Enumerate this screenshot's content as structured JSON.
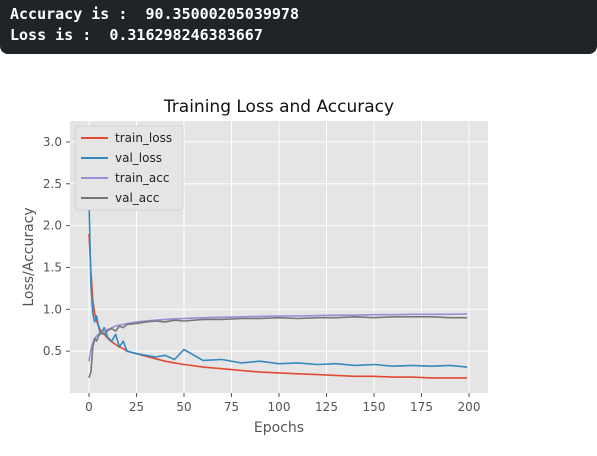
{
  "console": {
    "accuracy_line": "Accuracy is :  90.35000205039978",
    "loss_line": "Loss is :  0.316298246383667"
  },
  "colors": {
    "console_bg": "#1f2428",
    "plot_bg": "#e5e5e5",
    "train_loss": "#e24a33",
    "val_loss": "#348abd",
    "train_acc": "#988ed5",
    "val_acc": "#777777"
  },
  "chart_data": {
    "type": "line",
    "title": "Training Loss and Accuracy",
    "xlabel": "Epochs",
    "ylabel": "Loss/Accuracy",
    "xlim": [
      -10,
      210
    ],
    "ylim": [
      0.0,
      3.25
    ],
    "xticks": [
      0,
      25,
      50,
      75,
      100,
      125,
      150,
      175,
      200
    ],
    "yticks": [
      0.5,
      1.0,
      1.5,
      2.0,
      2.5,
      3.0
    ],
    "xtick_labels": [
      "0",
      "25",
      "50",
      "75",
      "100",
      "125",
      "150",
      "175",
      "200"
    ],
    "ytick_labels": [
      "0.5",
      "1.0",
      "1.5",
      "2.0",
      "2.5",
      "3.0"
    ],
    "grid": true,
    "legend_position": "top-left",
    "x": [
      0,
      1,
      2,
      3,
      4,
      5,
      6,
      8,
      10,
      12,
      14,
      16,
      18,
      20,
      25,
      30,
      35,
      40,
      45,
      50,
      60,
      70,
      80,
      90,
      100,
      110,
      120,
      130,
      140,
      150,
      160,
      170,
      180,
      190,
      199
    ],
    "series": [
      {
        "name": "train_loss",
        "color": "#e24a33",
        "values": [
          1.9,
          1.45,
          1.1,
          0.95,
          0.86,
          0.8,
          0.75,
          0.7,
          0.65,
          0.61,
          0.58,
          0.55,
          0.53,
          0.5,
          0.47,
          0.44,
          0.41,
          0.38,
          0.36,
          0.34,
          0.31,
          0.29,
          0.27,
          0.25,
          0.24,
          0.23,
          0.22,
          0.21,
          0.2,
          0.2,
          0.19,
          0.19,
          0.18,
          0.18,
          0.18
        ]
      },
      {
        "name": "val_loss",
        "color": "#348abd",
        "values": [
          2.3,
          1.3,
          0.95,
          0.85,
          0.92,
          0.8,
          0.7,
          0.78,
          0.66,
          0.62,
          0.7,
          0.55,
          0.62,
          0.5,
          0.47,
          0.45,
          0.43,
          0.45,
          0.4,
          0.52,
          0.39,
          0.4,
          0.36,
          0.38,
          0.35,
          0.36,
          0.34,
          0.35,
          0.33,
          0.34,
          0.32,
          0.33,
          0.32,
          0.33,
          0.31
        ]
      },
      {
        "name": "train_acc",
        "color": "#988ed5",
        "values": [
          0.38,
          0.52,
          0.6,
          0.65,
          0.68,
          0.7,
          0.72,
          0.74,
          0.76,
          0.78,
          0.8,
          0.81,
          0.82,
          0.83,
          0.85,
          0.86,
          0.87,
          0.88,
          0.885,
          0.89,
          0.9,
          0.905,
          0.91,
          0.915,
          0.92,
          0.92,
          0.925,
          0.93,
          0.93,
          0.935,
          0.935,
          0.94,
          0.94,
          0.94,
          0.945
        ]
      },
      {
        "name": "val_acc",
        "color": "#777777",
        "values": [
          0.18,
          0.25,
          0.55,
          0.65,
          0.62,
          0.68,
          0.72,
          0.7,
          0.75,
          0.77,
          0.74,
          0.8,
          0.78,
          0.82,
          0.83,
          0.85,
          0.86,
          0.85,
          0.87,
          0.86,
          0.88,
          0.88,
          0.89,
          0.89,
          0.9,
          0.89,
          0.9,
          0.9,
          0.91,
          0.9,
          0.91,
          0.91,
          0.91,
          0.9,
          0.9
        ]
      }
    ]
  }
}
